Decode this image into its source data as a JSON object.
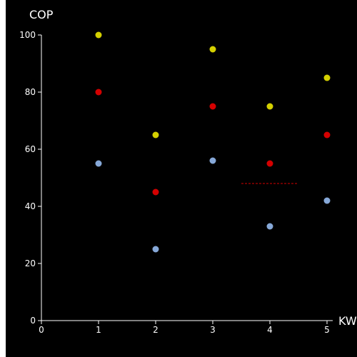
{
  "chart_data": {
    "type": "scatter",
    "title": "",
    "xlabel": "KW",
    "ylabel": "COP",
    "xlim": [
      0,
      5
    ],
    "ylim": [
      0,
      100
    ],
    "xticks": [
      0,
      1,
      2,
      3,
      4,
      5
    ],
    "yticks": [
      0,
      20,
      40,
      60,
      80,
      100
    ],
    "grid": false,
    "background": "#000000",
    "axis_color": "#ffffff",
    "series": [
      {
        "color": "#d4d000",
        "points": [
          [
            1,
            100
          ],
          [
            2,
            65
          ],
          [
            3,
            95
          ],
          [
            4,
            75
          ],
          [
            5,
            85
          ]
        ]
      },
      {
        "color": "#d40000",
        "points": [
          [
            1,
            80
          ],
          [
            2,
            45
          ],
          [
            3,
            75
          ],
          [
            4,
            55
          ],
          [
            5,
            65
          ]
        ]
      },
      {
        "color": "#86a8d8",
        "points": [
          [
            1,
            55
          ],
          [
            2,
            25
          ],
          [
            3,
            56
          ],
          [
            4,
            33
          ],
          [
            5,
            42
          ]
        ]
      }
    ],
    "annotations": [
      {
        "type": "dashed-segment",
        "color": "#d40000",
        "x": [
          3.5,
          4.5
        ],
        "y": 48
      }
    ]
  }
}
